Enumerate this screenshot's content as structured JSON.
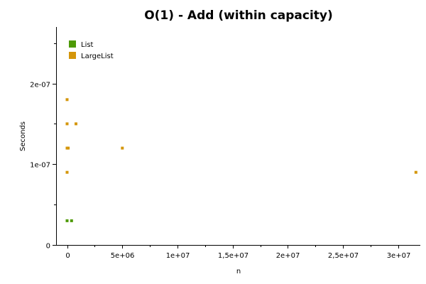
{
  "chart_data": {
    "type": "scatter",
    "title": "O(1) - Add (within capacity)",
    "xlabel": "n",
    "ylabel": "Seconds",
    "xlim": [
      -1000000,
      32000000
    ],
    "ylim": [
      0,
      2.7e-07
    ],
    "x_ticks": [
      {
        "value": 0,
        "label": "0"
      },
      {
        "value": 5000000,
        "label": "5e+06"
      },
      {
        "value": 10000000,
        "label": "1e+07"
      },
      {
        "value": 15000000,
        "label": "1,5e+07"
      },
      {
        "value": 20000000,
        "label": "2e+07"
      },
      {
        "value": 25000000,
        "label": "2,5e+07"
      },
      {
        "value": 30000000,
        "label": "3e+07"
      }
    ],
    "y_ticks": [
      {
        "value": 0,
        "label": "0"
      },
      {
        "value": 1e-07,
        "label": "1e-07"
      },
      {
        "value": 2e-07,
        "label": "2e-07"
      }
    ],
    "grid": false,
    "legend_position": "top-left",
    "series": [
      {
        "name": "List",
        "color": "#4e9a06",
        "points": [
          {
            "x": 0,
            "y": 3e-08
          },
          {
            "x": 400000,
            "y": 3e-08
          }
        ]
      },
      {
        "name": "LargeList",
        "color": "#d4960b",
        "points": [
          {
            "x": 0,
            "y": 1.8e-07
          },
          {
            "x": 0,
            "y": 1.5e-07
          },
          {
            "x": 800000,
            "y": 1.5e-07
          },
          {
            "x": 0,
            "y": 1.2e-07
          },
          {
            "x": 100000,
            "y": 1.2e-07
          },
          {
            "x": 5000000,
            "y": 1.2e-07
          },
          {
            "x": 0,
            "y": 9e-08
          },
          {
            "x": 31600000,
            "y": 9e-08
          }
        ]
      }
    ]
  }
}
